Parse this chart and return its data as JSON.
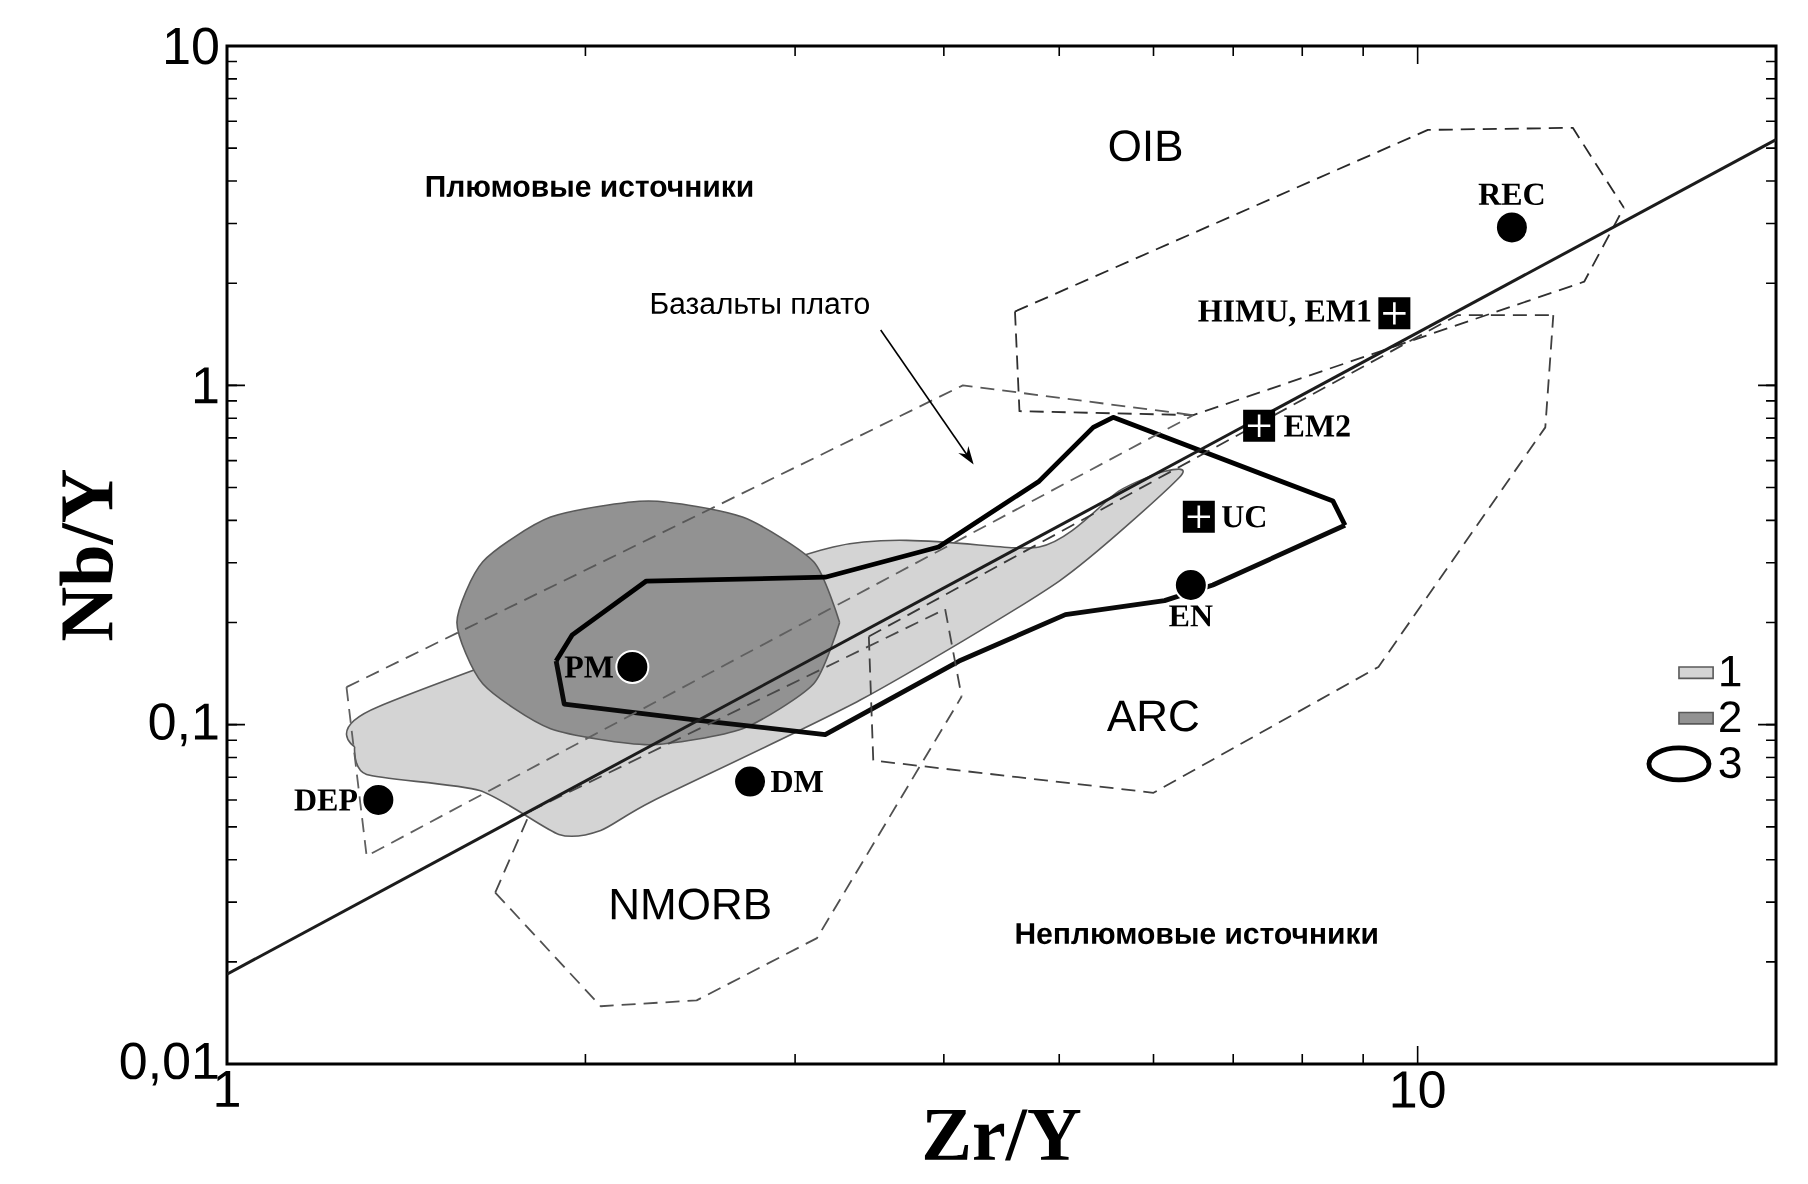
{
  "chart_data": {
    "type": "line",
    "xlabel": "Zr/Y",
    "ylabel": "Nb/Y",
    "log": "xy",
    "xlim": [
      1,
      20
    ],
    "ylim": [
      0.01,
      10
    ],
    "xticks": [
      1,
      10
    ],
    "yticks": [
      {
        "value": 0.01,
        "label": "0,01"
      },
      {
        "value": 0.1,
        "label": "0,1"
      },
      {
        "value": 1,
        "label": "1"
      },
      {
        "value": 10,
        "label": "10"
      }
    ],
    "legend": "bottom right",
    "series": [
      {
        "name": "1",
        "type": "area",
        "color": "#d4d4d4",
        "x": [
          1.28,
          1.31,
          1.63,
          1.9,
          2.06,
          2.28,
          3.4,
          5.0,
          6.31,
          6.13,
          5.61,
          4.81,
          3.23,
          2.66,
          2.06,
          1.63,
          1.34,
          1.28
        ],
        "values": [
          0.0861,
          0.0713,
          0.064,
          0.0475,
          0.0488,
          0.0597,
          0.118,
          0.265,
          0.536,
          0.558,
          0.488,
          0.334,
          0.334,
          null,
          null,
          null,
          0.113,
          0.0861
        ]
      },
      {
        "name": "2",
        "type": "area",
        "color": "#929292",
        "x": [
          3.27,
          3.11,
          2.71,
          2.26,
          1.87,
          1.64,
          1.56,
          1.64,
          1.87,
          2.26,
          2.71,
          3.11,
          3.27
        ],
        "values": [
          0.2,
          0.302,
          0.409,
          0.456,
          0.409,
          0.302,
          0.2,
          0.132,
          0.0973,
          0.0873,
          0.0973,
          0.132,
          0.2
        ]
      },
      {
        "name": "3",
        "color": "#000000",
        "line_style": "solid",
        "x": [
          1.89,
          1.95,
          2.25,
          3.18,
          3.96,
          4.81,
          5.34,
          5.55,
          8.49,
          8.69
        ],
        "values": [
          0.154,
          0.184,
          0.265,
          0.272,
          0.334,
          0.522,
          0.752,
          0.805,
          0.456,
          0.387
        ]
      },
      {
        "color": "#0a0a0a",
        "line_style": "solid",
        "x": [
          1.89,
          1.92,
          2.49,
          3.18,
          4.12,
          5.06,
          6.13,
          6.73,
          8.69
        ],
        "values": [
          0.154,
          0.115,
          0.103,
          0.0935,
          0.154,
          0.211,
          0.232,
          0.258,
          0.387
        ]
      },
      {
        "color": "#282828",
        "line_style": "dashed",
        "x": [
          4.59,
          10.2,
          13.5,
          14.9
        ],
        "values": [
          1.65,
          5.66,
          5.74,
          3.34
        ]
      },
      {
        "color": "#303030",
        "line_style": "dashed",
        "x": [
          4.59,
          4.63,
          6.48,
          13.8,
          14.9
        ],
        "values": [
          1.65,
          0.839,
          0.817,
          2.02,
          3.34
        ]
      },
      {
        "color": "#383838",
        "line_style": "dashed",
        "x": [
          3.46,
          10.8,
          13.0
        ],
        "values": [
          0.182,
          1.61,
          1.61
        ]
      },
      {
        "color": "#404040",
        "line_style": "dashed",
        "x": [
          3.46,
          3.49,
          6.0,
          9.27,
          12.8,
          13.0
        ],
        "values": [
          0.182,
          0.0784,
          0.063,
          0.148,
          0.752,
          1.61
        ]
      },
      {
        "color": "#484848",
        "line_style": "dashed",
        "x": [
          1.68,
          1.8,
          4.01,
          4.14
        ],
        "values": [
          0.032,
          0.0558,
          0.219,
          0.121
        ]
      },
      {
        "color": "#505050",
        "line_style": "dashed",
        "x": [
          1.68,
          2.06,
          2.48,
          3.13,
          4.14
        ],
        "values": [
          0.032,
          0.0148,
          0.0154,
          0.0235,
          0.121
        ]
      },
      {
        "color": "#585858",
        "line_style": "dashed",
        "x": [
          1.26,
          4.15,
          6.48
        ],
        "values": [
          0.129,
          1.0,
          0.817
        ]
      },
      {
        "color": "#606060",
        "line_style": "dashed",
        "x": [
          1.26,
          1.31,
          6.48
        ],
        "values": [
          0.129,
          0.041,
          0.817
        ]
      },
      {
        "color": "#1c1c1c",
        "line_style": "solid",
        "x": [
          1,
          20
        ],
        "values": [
          0.0184,
          5.3
        ]
      },
      {
        "type": "scatter",
        "color": "#000000",
        "marker": "circle",
        "x": [
          1.34,
          2.75,
          2.19,
          6.45,
          12.0
        ],
        "values": [
          0.06,
          0.068,
          0.148,
          0.258,
          2.92
        ]
      },
      {
        "type": "scatter",
        "color": "#000000",
        "marker": "square",
        "x": [
          9.56,
          7.36,
          6.55
        ],
        "values": [
          1.63,
          0.76,
          0.41
        ]
      }
    ],
    "annotations": [
      {
        "text": "DEP",
        "x": 1.34,
        "y": 0.06
      },
      {
        "text": "DM",
        "x": 2.75,
        "y": 0.068
      },
      {
        "text": "PM",
        "x": 2.19,
        "y": 0.148
      },
      {
        "text": "EN",
        "x": 6.45,
        "y": 0.258
      },
      {
        "text": "REC",
        "x": 12.0,
        "y": 2.92
      },
      {
        "text": "HIMU, EM1",
        "x": 9.56,
        "y": 1.63
      },
      {
        "text": "EM2",
        "x": 7.36,
        "y": 0.76
      },
      {
        "text": "UC",
        "x": 6.55,
        "y": 0.41
      },
      "OIB",
      "ARC",
      "NMORB",
      "Плюмовые источники",
      "Неплюмовые источники",
      "Базальты плато"
    ]
  }
}
